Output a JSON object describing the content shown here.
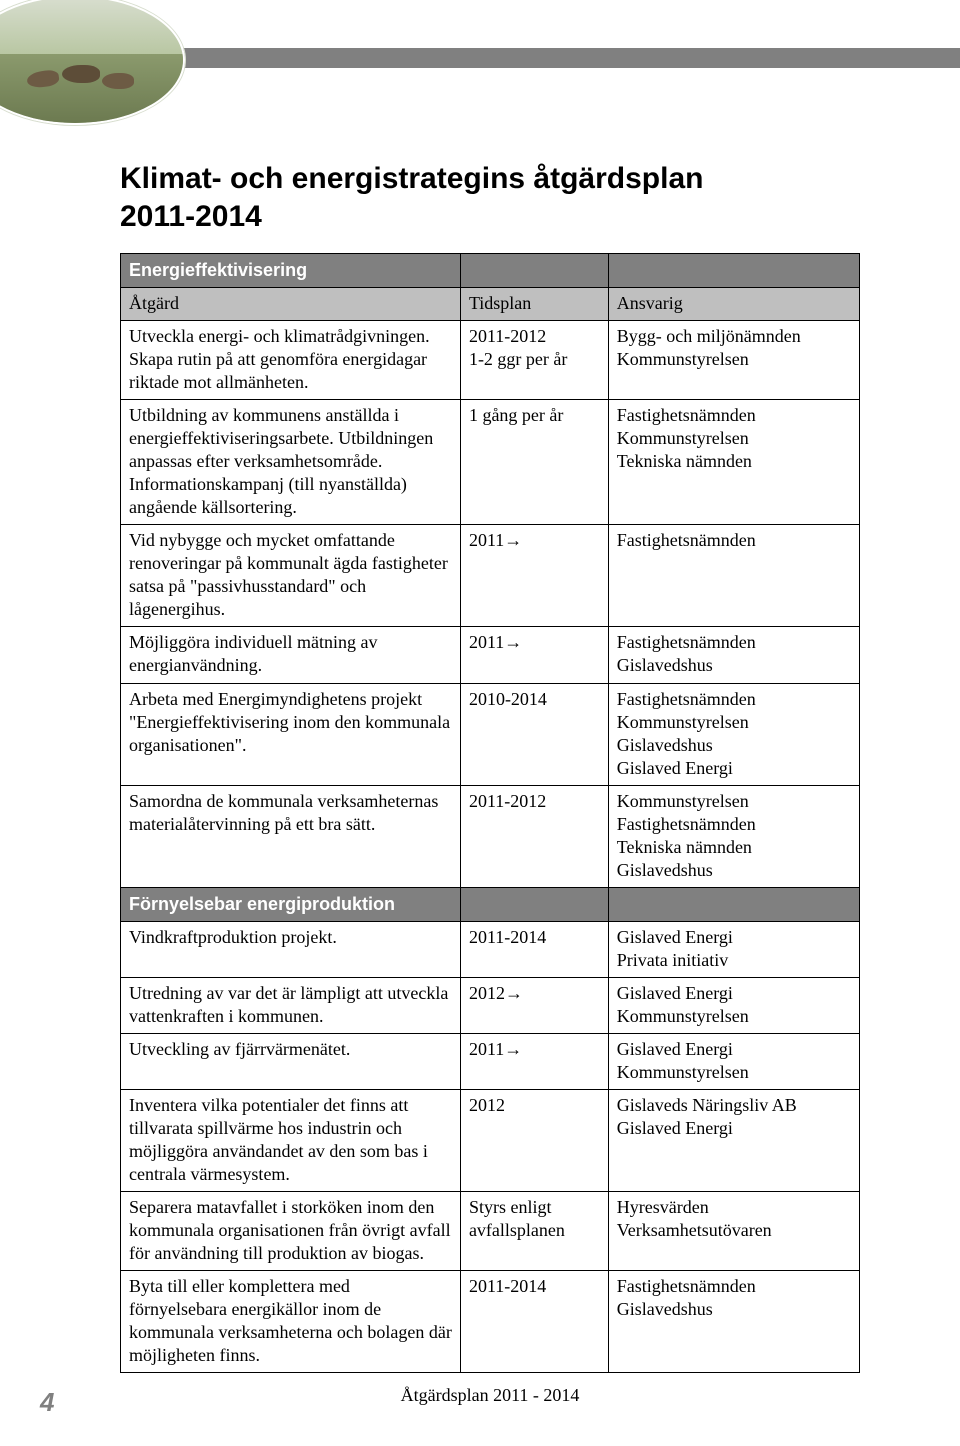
{
  "title_line1": "Klimat- och energistrategins åtgärdsplan",
  "title_line2": "2011-2014",
  "footer": "Åtgärdsplan 2011 - 2014",
  "page_number": "4",
  "colors": {
    "section_bg": "#808080",
    "section_fg": "#ffffff",
    "header_bg": "#bfbfbf",
    "border": "#000000",
    "body_text": "#000000"
  },
  "table": {
    "column_headers": {
      "atgard": "Åtgärd",
      "tidsplan": "Tidsplan",
      "ansvarig": "Ansvarig"
    },
    "sections": [
      {
        "title": "Energieffektivisering",
        "rows": [
          {
            "atgard": "Utveckla energi- och klimatrådgivningen. Skapa rutin på att genomföra energidagar riktade mot allmänheten.",
            "tidsplan": "2011-2012\n1-2 ggr per år",
            "ansvarig": "Bygg- och miljönämnden\nKommunstyrelsen"
          },
          {
            "atgard": "Utbildning av kommunens anställda i energieffektiviseringsarbete. Utbildningen anpassas efter verksamhetsområde. Informationskampanj (till nyanställda) angående källsortering.",
            "tidsplan": "1 gång per år",
            "ansvarig": "Fastighetsnämnden\nKommunstyrelsen\nTekniska nämnden"
          },
          {
            "atgard": "Vid nybygge och mycket omfattande renoveringar på kommunalt ägda fastigheter satsa på \"passivhusstandard\" och lågenergihus.",
            "tidsplan": "2011→",
            "ansvarig": "Fastighetsnämnden"
          },
          {
            "atgard": "Möjliggöra individuell mätning av energianvändning.",
            "tidsplan": "2011→",
            "ansvarig": "Fastighetsnämnden\nGislavedshus"
          },
          {
            "atgard": "Arbeta med Energimyndighetens projekt \"Energieffektivisering inom den kommunala organisationen\".",
            "tidsplan": "2010-2014",
            "ansvarig": "Fastighetsnämnden\nKommunstyrelsen\nGislavedshus\nGislaved Energi"
          },
          {
            "atgard": "Samordna de kommunala verksamheternas materialåtervinning på ett bra sätt.",
            "tidsplan": "2011-2012",
            "ansvarig": "Kommunstyrelsen\nFastighetsnämnden\nTekniska nämnden\nGislavedshus"
          }
        ]
      },
      {
        "title": "Förnyelsebar energiproduktion",
        "rows": [
          {
            "atgard": "Vindkraftproduktion projekt.",
            "tidsplan": "2011-2014",
            "ansvarig": "Gislaved Energi\nPrivata initiativ"
          },
          {
            "atgard": "Utredning av var det är lämpligt att utveckla vattenkraften i kommunen.",
            "tidsplan": "2012→",
            "ansvarig": "Gislaved Energi\nKommunstyrelsen"
          },
          {
            "atgard": "Utveckling av fjärrvärmenätet.",
            "tidsplan": "2011→",
            "ansvarig": "Gislaved Energi\nKommunstyrelsen"
          },
          {
            "atgard": "Inventera vilka potentialer det finns att tillvarata spillvärme hos industrin och möjliggöra användandet av den som bas i centrala värmesystem.",
            "tidsplan": "2012",
            "ansvarig": "Gislaveds Näringsliv AB\nGislaved Energi"
          },
          {
            "atgard": "Separera matavfallet i storköken inom den kommunala organisationen från övrigt avfall för användning till produktion av biogas.",
            "tidsplan": "Styrs enligt avfallsplanen",
            "ansvarig": "Hyresvärden\nVerksamhetsutövaren"
          },
          {
            "atgard": "Byta till eller komplettera med förnyelsebara energikällor inom de kommunala verksamheterna och bolagen där möjligheten finns.",
            "tidsplan": "2011-2014",
            "ansvarig": "Fastighetsnämnden\nGislavedshus"
          }
        ]
      }
    ]
  }
}
